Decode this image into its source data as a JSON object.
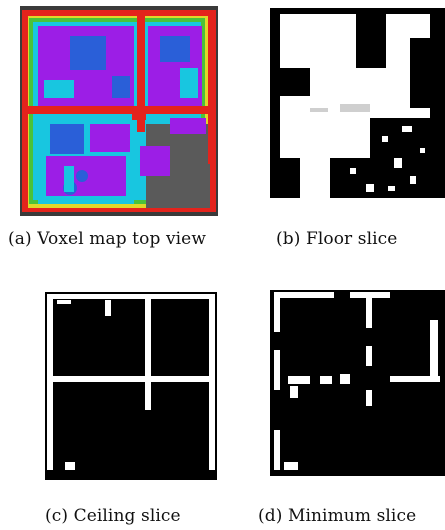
{
  "figure": {
    "panels": [
      {
        "id": "a",
        "caption": "(a) Voxel map top view",
        "content": "voxel-map-top-view"
      },
      {
        "id": "b",
        "caption": "(b) Floor slice",
        "content": "binary-floor-slice"
      },
      {
        "id": "c",
        "caption": "(c) Ceiling slice",
        "content": "binary-ceiling-slice"
      },
      {
        "id": "d",
        "caption": "(d) Minimum slice",
        "content": "binary-minimum-slice"
      }
    ],
    "colors": {
      "wall_red": "#e4231c",
      "floor_purple": "#9c1ee6",
      "cyan": "#18c6e0",
      "blue": "#2a5fd8",
      "green": "#4ac23a",
      "yellow": "#e0d828",
      "background_gray": "#5a5a5a",
      "occupied_white": "#ffffff",
      "free_black": "#000000"
    }
  }
}
